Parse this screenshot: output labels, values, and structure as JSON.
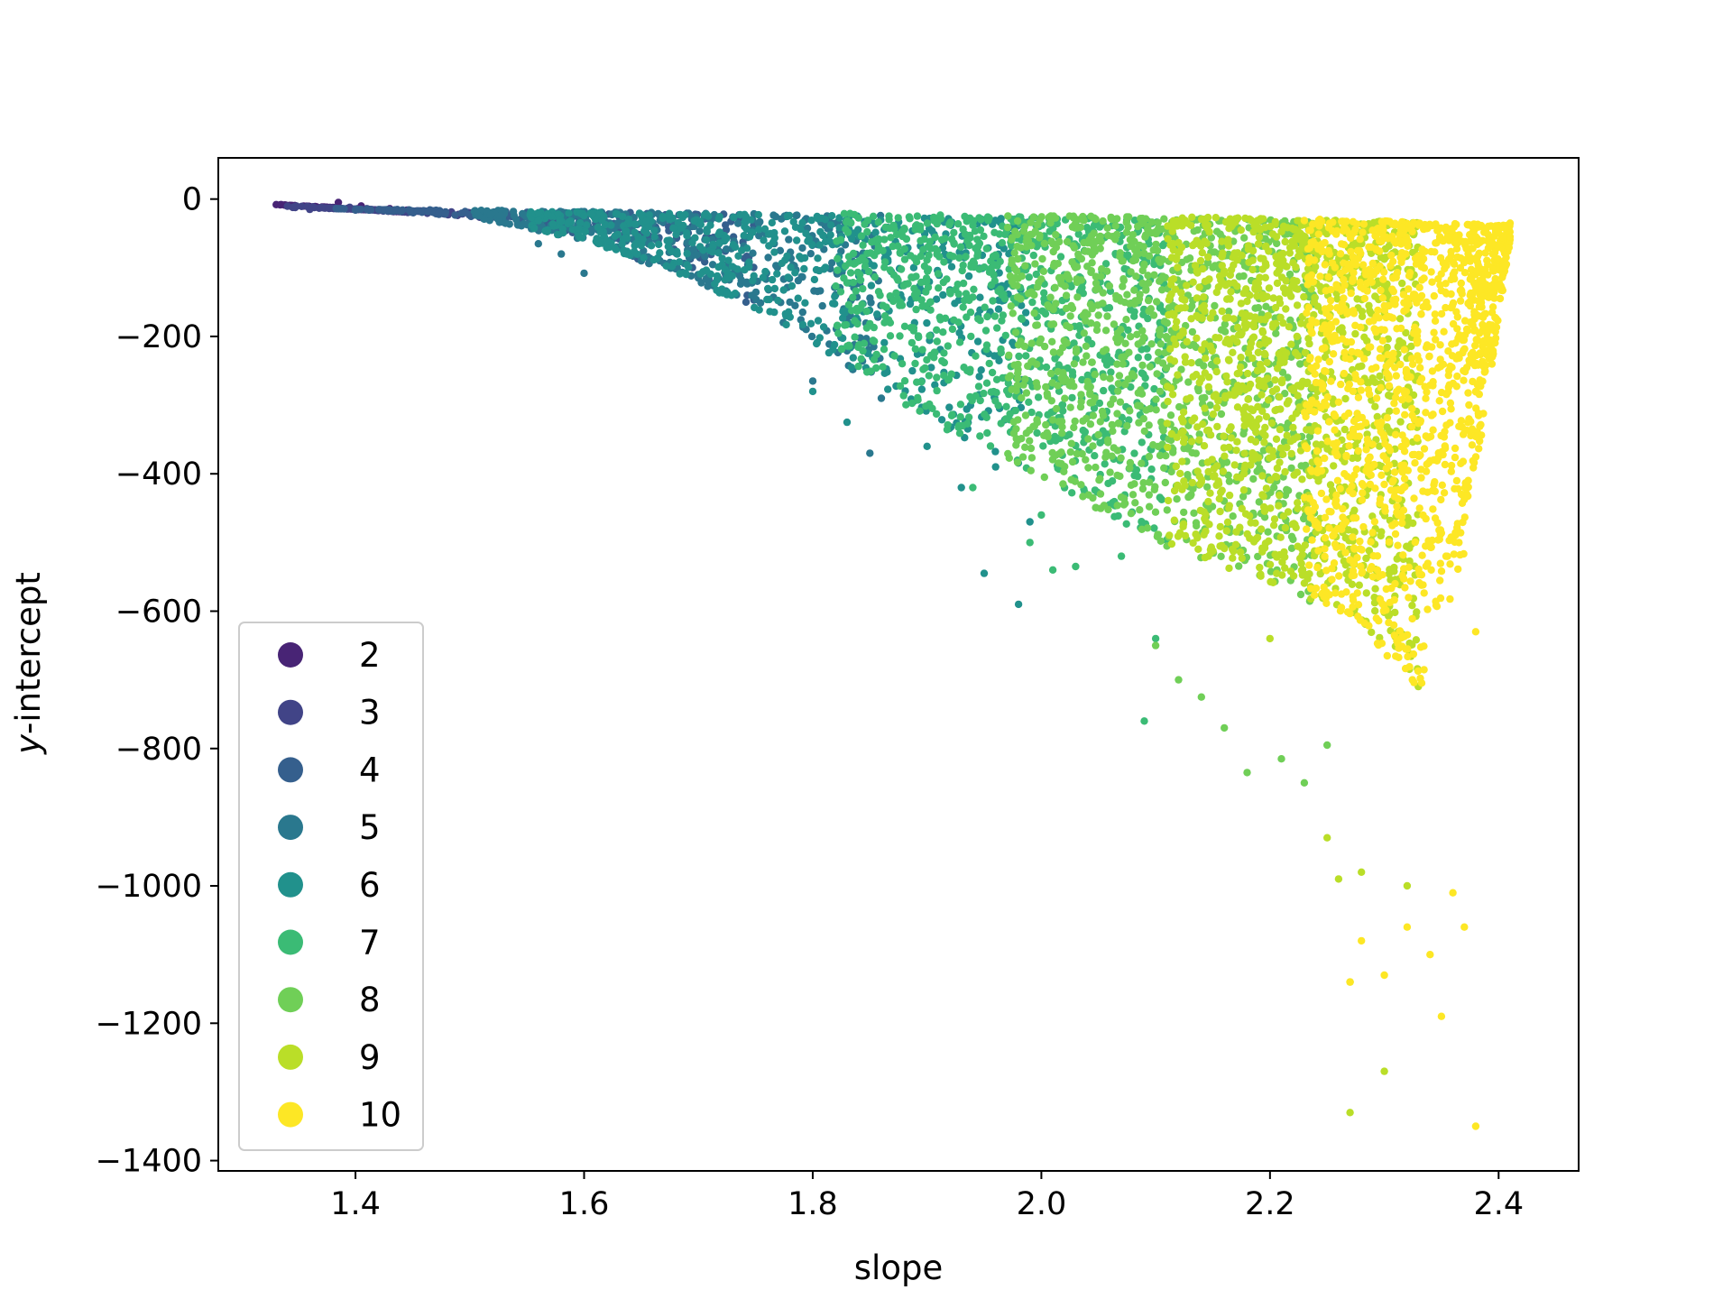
{
  "chart_data": {
    "type": "scatter",
    "title": "",
    "xlabel": "slope",
    "ylabel": "y-intercept",
    "xlim": [
      1.28,
      2.47
    ],
    "ylim": [
      -1415,
      60
    ],
    "xticks": [
      "1.4",
      "1.6",
      "1.8",
      "2.0",
      "2.2",
      "2.4"
    ],
    "xtick_values": [
      1.4,
      1.6,
      1.8,
      2.0,
      2.2,
      2.4
    ],
    "yticks": [
      "0",
      "−200",
      "−400",
      "−600",
      "−800",
      "−1000",
      "−1200",
      "−1400"
    ],
    "ytick_values": [
      0,
      -200,
      -400,
      -600,
      -800,
      -1000,
      -1200,
      -1400
    ],
    "grid": false,
    "legend": {
      "placement": "lower-left"
    },
    "colormap": "viridis",
    "series": [
      {
        "name": "2",
        "color": "#482475",
        "slope_range": [
          1.33,
          1.45
        ],
        "intercept_top": [
          -8,
          -18
        ],
        "spread": 0.02,
        "points": [
          [
            1.335,
            -8
          ],
          [
            1.345,
            -12
          ],
          [
            1.385,
            -5
          ],
          [
            1.405,
            -10
          ],
          [
            1.43,
            -14
          ],
          [
            1.445,
            -16
          ]
        ]
      },
      {
        "name": "3",
        "color": "#414487",
        "slope_range": [
          1.34,
          1.52
        ],
        "intercept_top": [
          -12,
          -20
        ],
        "spread": 0.04,
        "points": [
          [
            1.36,
            -15
          ],
          [
            1.395,
            -12
          ],
          [
            1.41,
            -14
          ],
          [
            1.42,
            -16
          ],
          [
            1.47,
            -18
          ],
          [
            1.5,
            -20
          ]
        ]
      },
      {
        "name": "4",
        "color": "#355f8d",
        "slope_range": [
          1.38,
          1.75
        ],
        "intercept_top": [
          -14,
          -22
        ],
        "spread": 0.12,
        "points": [
          [
            1.4,
            -16
          ],
          [
            1.44,
            -18
          ],
          [
            1.53,
            -22
          ],
          [
            1.57,
            -28
          ],
          [
            1.61,
            -35
          ]
        ]
      },
      {
        "name": "5",
        "color": "#2a788e",
        "slope_range": [
          1.5,
          1.86
        ],
        "intercept_top": [
          -16,
          -24
        ],
        "spread": 0.3,
        "points": [
          [
            1.56,
            -65
          ],
          [
            1.58,
            -80
          ],
          [
            1.6,
            -108
          ],
          [
            1.65,
            -90
          ],
          [
            1.7,
            -115
          ],
          [
            1.78,
            -150
          ],
          [
            1.8,
            -265
          ],
          [
            1.85,
            -370
          ],
          [
            1.86,
            -290
          ]
        ]
      },
      {
        "name": "6",
        "color": "#21918c",
        "slope_range": [
          1.55,
          1.99
        ],
        "intercept_top": [
          -18,
          -28
        ],
        "spread": 0.45,
        "points": [
          [
            1.8,
            -280
          ],
          [
            1.83,
            -325
          ],
          [
            1.9,
            -360
          ],
          [
            1.93,
            -420
          ],
          [
            1.95,
            -545
          ],
          [
            1.96,
            -390
          ],
          [
            1.98,
            -590
          ],
          [
            1.99,
            -470
          ]
        ]
      },
      {
        "name": "7",
        "color": "#3bbb75",
        "slope_range": [
          1.82,
          2.11
        ],
        "intercept_top": [
          -20,
          -30
        ],
        "spread": 0.65,
        "points": [
          [
            1.94,
            -420
          ],
          [
            1.99,
            -500
          ],
          [
            2.0,
            -460
          ],
          [
            2.01,
            -540
          ],
          [
            2.03,
            -535
          ],
          [
            2.07,
            -520
          ],
          [
            2.09,
            -760
          ],
          [
            2.1,
            -640
          ]
        ]
      },
      {
        "name": "8",
        "color": "#70cf57",
        "slope_range": [
          1.97,
          2.24
        ],
        "intercept_top": [
          -22,
          -32
        ],
        "spread": 0.85,
        "points": [
          [
            2.1,
            -650
          ],
          [
            2.12,
            -700
          ],
          [
            2.14,
            -725
          ],
          [
            2.16,
            -770
          ],
          [
            2.18,
            -835
          ],
          [
            2.21,
            -815
          ],
          [
            2.23,
            -850
          ],
          [
            2.25,
            -795
          ]
        ]
      },
      {
        "name": "9",
        "color": "#bade28",
        "slope_range": [
          2.11,
          2.33
        ],
        "intercept_top": [
          -25,
          -34
        ],
        "spread": 1.0,
        "points": [
          [
            2.2,
            -640
          ],
          [
            2.25,
            -930
          ],
          [
            2.26,
            -990
          ],
          [
            2.27,
            -1140
          ],
          [
            2.27,
            -1330
          ],
          [
            2.3,
            -1270
          ],
          [
            2.28,
            -980
          ],
          [
            2.32,
            -1000
          ]
        ]
      },
      {
        "name": "10",
        "color": "#fde725",
        "slope_range": [
          2.23,
          2.41
        ],
        "intercept_top": [
          -28,
          -38
        ],
        "spread": 1.0,
        "points": [
          [
            2.27,
            -1140
          ],
          [
            2.28,
            -1080
          ],
          [
            2.3,
            -1130
          ],
          [
            2.32,
            -1060
          ],
          [
            2.34,
            -1100
          ],
          [
            2.35,
            -1190
          ],
          [
            2.36,
            -1010
          ],
          [
            2.38,
            -1350
          ],
          [
            2.37,
            -1060
          ],
          [
            2.38,
            -630
          ],
          [
            2.41,
            -35
          ]
        ]
      }
    ]
  }
}
